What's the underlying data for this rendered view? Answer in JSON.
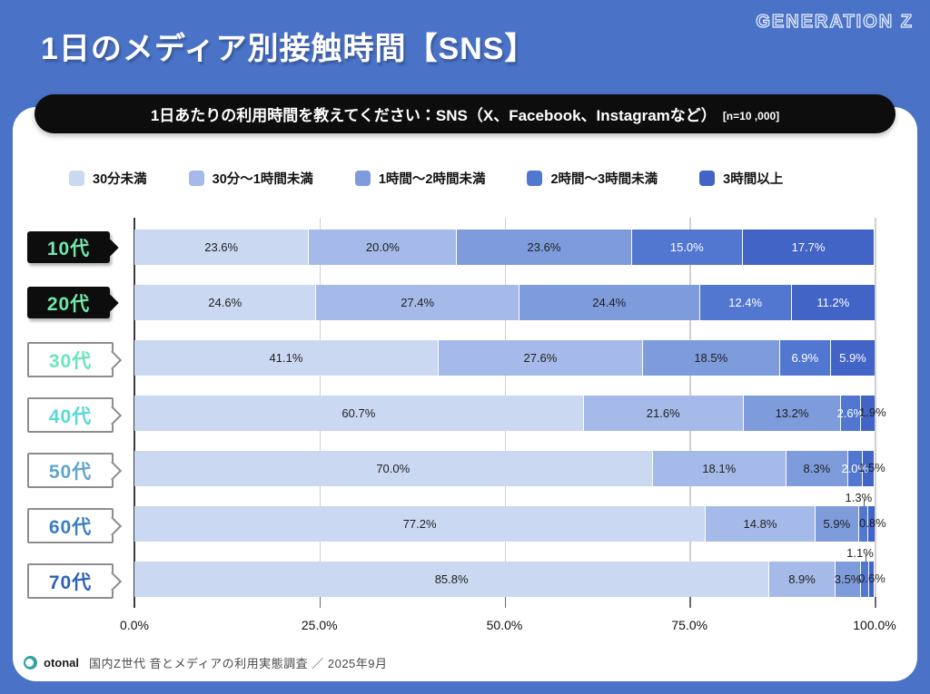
{
  "header": {
    "title": "1日のメディア別接触時間【SNS】",
    "brand": "GENERATION Z"
  },
  "question": {
    "text": "1日あたりの利用時間を教えてください：SNS（X、Facebook、Instagramなど）",
    "sample": "[n=10 ,000]"
  },
  "chart_data": {
    "type": "bar",
    "orientation": "horizontal-stacked",
    "title": "1日のメディア別接触時間【SNS】",
    "xlim": [
      0,
      100
    ],
    "xticks": [
      "0.0%",
      "25.0%",
      "50.0%",
      "75.0%",
      "100.0%"
    ],
    "xtick_positions": [
      0,
      25,
      50,
      75,
      100
    ],
    "grid": true,
    "legend_position": "top",
    "categories": [
      "10代",
      "20代",
      "30代",
      "40代",
      "50代",
      "60代",
      "70代"
    ],
    "category_styles": [
      {
        "label": "10代",
        "variant": "solid",
        "color": "#70e8ab"
      },
      {
        "label": "20代",
        "variant": "solid",
        "color": "#70e8ab"
      },
      {
        "label": "30代",
        "variant": "outline",
        "color": "#69e5bc"
      },
      {
        "label": "40代",
        "variant": "outline",
        "color": "#57d8d9"
      },
      {
        "label": "50代",
        "variant": "outline",
        "color": "#5ea6cb"
      },
      {
        "label": "60代",
        "variant": "outline",
        "color": "#3b7ec3"
      },
      {
        "label": "70代",
        "variant": "outline",
        "color": "#2d63b5"
      }
    ],
    "series": [
      {
        "name": "30分未満",
        "color": "#cbd8f1",
        "values": [
          23.6,
          24.6,
          41.1,
          60.7,
          70.0,
          77.2,
          85.8
        ],
        "placements": [
          "in",
          "in",
          "in",
          "in",
          "in",
          "in",
          "in"
        ]
      },
      {
        "name": "30分〜1時間未満",
        "color": "#a5bae8",
        "values": [
          20.0,
          27.4,
          27.6,
          21.6,
          18.1,
          14.8,
          8.9
        ],
        "placements": [
          "in",
          "in",
          "in",
          "in",
          "in",
          "in",
          "in"
        ]
      },
      {
        "name": "1時間〜2時間未満",
        "color": "#7e9bdc",
        "values": [
          23.6,
          24.4,
          18.5,
          13.2,
          8.3,
          5.9,
          3.5
        ],
        "placements": [
          "in",
          "in",
          "in",
          "in",
          "in",
          "in",
          "in"
        ]
      },
      {
        "name": "2時間〜3時間未満",
        "color": "#5177d1",
        "values": [
          15.0,
          12.4,
          6.9,
          2.6,
          2.0,
          1.3,
          1.1
        ],
        "placements": [
          "in",
          "in",
          "in",
          "in",
          "in",
          "above",
          "above"
        ]
      },
      {
        "name": "3時間以上",
        "color": "#4164c6",
        "values": [
          17.7,
          11.2,
          5.9,
          1.9,
          1.5,
          0.8,
          0.6
        ],
        "placements": [
          "in",
          "in",
          "in",
          "right",
          "right",
          "right",
          "right"
        ]
      }
    ],
    "value_suffix": "%"
  },
  "footer": {
    "logo": "otonal",
    "text": "国内Z世代 音とメディアの利用実態調査 ／ 2025年9月"
  },
  "colors": {
    "frame_blue": "#4a72c6",
    "pill_black": "#0d0d0d",
    "mint_label": "#70e8ab",
    "value_dark": "#1f1f1f",
    "value_light": "#ffffff"
  }
}
